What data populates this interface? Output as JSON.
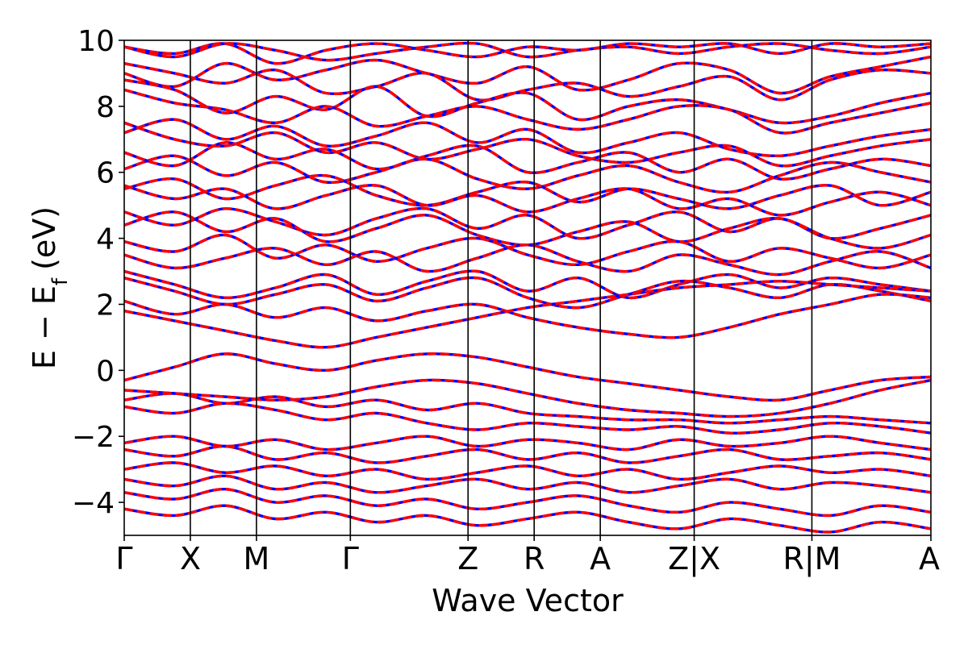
{
  "chart_data": {
    "type": "line",
    "xlabel": "Wave Vector",
    "ylabel_main": "E − E",
    "ylabel_sub": "f",
    "ylabel_unit": "(eV)",
    "ylim": [
      -5,
      10
    ],
    "yticks": [
      {
        "value": 10,
        "label": "10"
      },
      {
        "value": 8,
        "label": "8"
      },
      {
        "value": 6,
        "label": "6"
      },
      {
        "value": 4,
        "label": "4"
      },
      {
        "value": 2,
        "label": "2"
      },
      {
        "value": 0,
        "label": "0"
      },
      {
        "value": -2,
        "label": "−2"
      },
      {
        "value": -4,
        "label": "−4"
      }
    ],
    "xlim": [
      0,
      12.2
    ],
    "kpoints": [
      {
        "x": 0.0,
        "label": "Γ"
      },
      {
        "x": 1.0,
        "label": "X"
      },
      {
        "x": 2.0,
        "label": "M"
      },
      {
        "x": 3.42,
        "label": "Γ"
      },
      {
        "x": 5.2,
        "label": "Z"
      },
      {
        "x": 6.2,
        "label": "R"
      },
      {
        "x": 7.2,
        "label": "A"
      },
      {
        "x": 8.62,
        "label": "Z|X"
      },
      {
        "x": 10.4,
        "label": "R|M"
      },
      {
        "x": 12.2,
        "label": "A"
      }
    ],
    "series_styles": {
      "primary_color": "#ff0000",
      "secondary_color": "#0000ff"
    },
    "bands": [
      {
        "segments": [
          [
            9.8,
            9.6,
            9.9,
            9.3,
            9.7,
            9.9,
            9.7,
            9.5,
            9.8,
            9.7,
            9.9,
            9.8,
            9.9,
            9.6,
            9.9,
            9.8,
            9.9
          ],
          [
            9.8,
            9.5,
            9.9,
            9.7,
            9.4,
            9.6,
            9.8,
            9.9,
            9.5,
            9.7,
            9.8,
            9.6,
            9.8,
            9.9,
            9.7,
            9.6,
            9.8
          ]
        ]
      },
      {
        "segments": [
          [
            9.0,
            8.6,
            9.3,
            8.8,
            9.1,
            9.4,
            9.0,
            8.7,
            9.2,
            8.5,
            8.8,
            9.3,
            9.1,
            8.4,
            8.9,
            9.2,
            9.5
          ],
          [
            9.3,
            9.0,
            8.7,
            9.1,
            8.4,
            8.6,
            9.0,
            8.2,
            8.5,
            8.7,
            8.3,
            8.6,
            8.9,
            8.2,
            8.8,
            9.1,
            9.0
          ]
        ]
      },
      {
        "segments": [
          [
            8.8,
            8.5,
            7.8,
            8.3,
            7.9,
            8.6,
            7.7,
            8.1,
            8.4,
            7.6,
            8.0,
            8.2,
            7.9,
            7.5,
            7.7,
            8.1,
            8.4
          ],
          [
            8.5,
            8.1,
            7.9,
            7.5,
            8.0,
            7.4,
            7.7,
            8.0,
            7.6,
            7.3,
            7.6,
            8.0,
            7.9,
            7.2,
            7.5,
            7.8,
            8.1
          ]
        ]
      },
      {
        "segments": [
          [
            7.2,
            7.6,
            7.0,
            7.4,
            6.8,
            7.1,
            7.5,
            6.9,
            7.3,
            6.6,
            6.9,
            7.2,
            6.7,
            6.5,
            6.8,
            7.1,
            7.3
          ],
          [
            7.5,
            7.0,
            6.8,
            7.2,
            6.6,
            6.9,
            6.4,
            6.7,
            7.0,
            6.5,
            6.3,
            6.6,
            6.8,
            6.2,
            6.5,
            6.8,
            7.0
          ]
        ]
      },
      {
        "segments": [
          [
            6.6,
            6.2,
            6.9,
            6.4,
            6.7,
            6.1,
            6.5,
            6.8,
            6.0,
            6.3,
            6.6,
            6.0,
            6.4,
            5.8,
            6.1,
            6.4,
            6.2
          ],
          [
            6.1,
            6.5,
            5.9,
            6.3,
            5.7,
            6.0,
            6.4,
            5.8,
            5.5,
            5.9,
            6.2,
            5.7,
            5.4,
            5.9,
            6.3,
            6.0,
            5.7
          ]
        ]
      },
      {
        "segments": [
          [
            5.5,
            5.8,
            5.2,
            5.6,
            5.9,
            5.3,
            5.0,
            5.4,
            5.7,
            5.1,
            5.5,
            5.2,
            4.9,
            5.3,
            5.6,
            5.0,
            5.4
          ],
          [
            5.6,
            5.2,
            5.5,
            4.9,
            5.3,
            5.6,
            5.0,
            5.3,
            4.8,
            5.2,
            5.5,
            4.9,
            5.2,
            4.7,
            5.1,
            5.4,
            5.0
          ]
        ]
      },
      {
        "segments": [
          [
            4.8,
            4.4,
            4.9,
            4.5,
            4.1,
            4.6,
            4.9,
            4.3,
            4.7,
            4.0,
            4.4,
            4.8,
            4.2,
            4.6,
            4.0,
            4.3,
            4.7
          ],
          [
            4.4,
            4.8,
            4.2,
            4.6,
            3.9,
            4.3,
            4.7,
            4.1,
            3.8,
            4.2,
            4.5,
            3.9,
            4.3,
            4.6,
            4.0,
            3.7,
            4.1
          ]
        ]
      },
      {
        "segments": [
          [
            3.9,
            3.6,
            4.1,
            3.4,
            3.8,
            3.3,
            3.7,
            4.0,
            3.5,
            3.2,
            3.6,
            3.9,
            3.3,
            3.7,
            3.4,
            3.1,
            3.5
          ],
          [
            3.5,
            3.1,
            3.4,
            3.7,
            3.2,
            3.6,
            3.0,
            3.4,
            3.8,
            3.3,
            3.0,
            3.5,
            3.2,
            2.9,
            3.3,
            3.6,
            3.1
          ]
        ]
      },
      {
        "segments": [
          [
            3.0,
            2.6,
            2.2,
            2.5,
            2.9,
            2.3,
            2.7,
            3.0,
            2.4,
            2.8,
            2.2,
            2.6,
            2.9,
            2.5,
            2.8,
            2.6,
            2.4
          ],
          [
            2.8,
            2.4,
            2.0,
            2.3,
            2.6,
            2.1,
            2.5,
            2.8,
            2.2,
            1.9,
            2.3,
            2.7,
            2.5,
            2.2,
            2.6,
            2.4,
            2.1
          ]
        ]
      },
      {
        "segments": [
          [
            2.1,
            1.7,
            2.0,
            1.6,
            1.9,
            1.5,
            1.8,
            2.0,
            1.6,
            1.3,
            1.1,
            1.0,
            1.3,
            1.7,
            2.0,
            2.3,
            2.2
          ],
          [
            1.8,
            1.5,
            1.2,
            0.9,
            0.7,
            1.0,
            1.3,
            1.6,
            1.9,
            2.1,
            2.3,
            2.5,
            2.6,
            2.7,
            2.6,
            2.5,
            2.4
          ]
        ]
      },
      {
        "segments": [
          [
            -0.3,
            0.1,
            0.5,
            0.2,
            0.0,
            0.3,
            0.5,
            0.4,
            0.1,
            -0.2,
            -0.4,
            -0.6,
            -0.8,
            -0.9,
            -0.6,
            -0.3,
            -0.2
          ],
          [
            -0.6,
            -0.7,
            -0.8,
            -0.9,
            -0.8,
            -0.5,
            -0.3,
            -0.4,
            -0.7,
            -1.0,
            -1.2,
            -1.3,
            -1.4,
            -1.3,
            -1.0,
            -0.6,
            -0.3
          ]
        ]
      },
      {
        "segments": [
          [
            -0.9,
            -0.7,
            -1.0,
            -0.8,
            -1.1,
            -0.9,
            -1.2,
            -1.0,
            -1.3,
            -1.4,
            -1.5,
            -1.5,
            -1.6,
            -1.5,
            -1.4,
            -1.5,
            -1.6
          ],
          [
            -1.1,
            -1.3,
            -1.0,
            -1.2,
            -1.5,
            -1.3,
            -1.6,
            -1.8,
            -1.6,
            -1.7,
            -1.8,
            -1.7,
            -1.9,
            -1.8,
            -1.6,
            -1.7,
            -1.9
          ]
        ]
      },
      {
        "segments": [
          [
            -2.2,
            -2.0,
            -2.3,
            -2.1,
            -2.4,
            -2.2,
            -2.0,
            -2.3,
            -2.1,
            -2.2,
            -2.4,
            -2.1,
            -2.3,
            -2.2,
            -2.0,
            -2.2,
            -2.4
          ],
          [
            -2.4,
            -2.6,
            -2.3,
            -2.7,
            -2.5,
            -2.8,
            -2.6,
            -2.4,
            -2.7,
            -2.5,
            -2.8,
            -2.6,
            -2.4,
            -2.7,
            -2.6,
            -2.5,
            -2.7
          ]
        ]
      },
      {
        "segments": [
          [
            -3.0,
            -2.8,
            -3.1,
            -2.9,
            -3.2,
            -3.0,
            -3.3,
            -3.1,
            -2.9,
            -3.2,
            -3.0,
            -3.3,
            -3.1,
            -2.9,
            -3.1,
            -3.0,
            -3.2
          ],
          [
            -3.3,
            -3.5,
            -3.2,
            -3.6,
            -3.4,
            -3.7,
            -3.5,
            -3.3,
            -3.6,
            -3.4,
            -3.7,
            -3.5,
            -3.3,
            -3.6,
            -3.4,
            -3.5,
            -3.7
          ]
        ]
      },
      {
        "segments": [
          [
            -3.7,
            -3.9,
            -3.6,
            -4.0,
            -3.8,
            -4.1,
            -3.9,
            -4.2,
            -4.0,
            -3.8,
            -4.1,
            -4.3,
            -4.0,
            -4.2,
            -4.4,
            -4.1,
            -4.3
          ],
          [
            -4.2,
            -4.4,
            -4.1,
            -4.5,
            -4.3,
            -4.6,
            -4.4,
            -4.7,
            -4.5,
            -4.3,
            -4.6,
            -4.8,
            -4.5,
            -4.7,
            -4.9,
            -4.6,
            -4.8
          ]
        ]
      }
    ]
  }
}
